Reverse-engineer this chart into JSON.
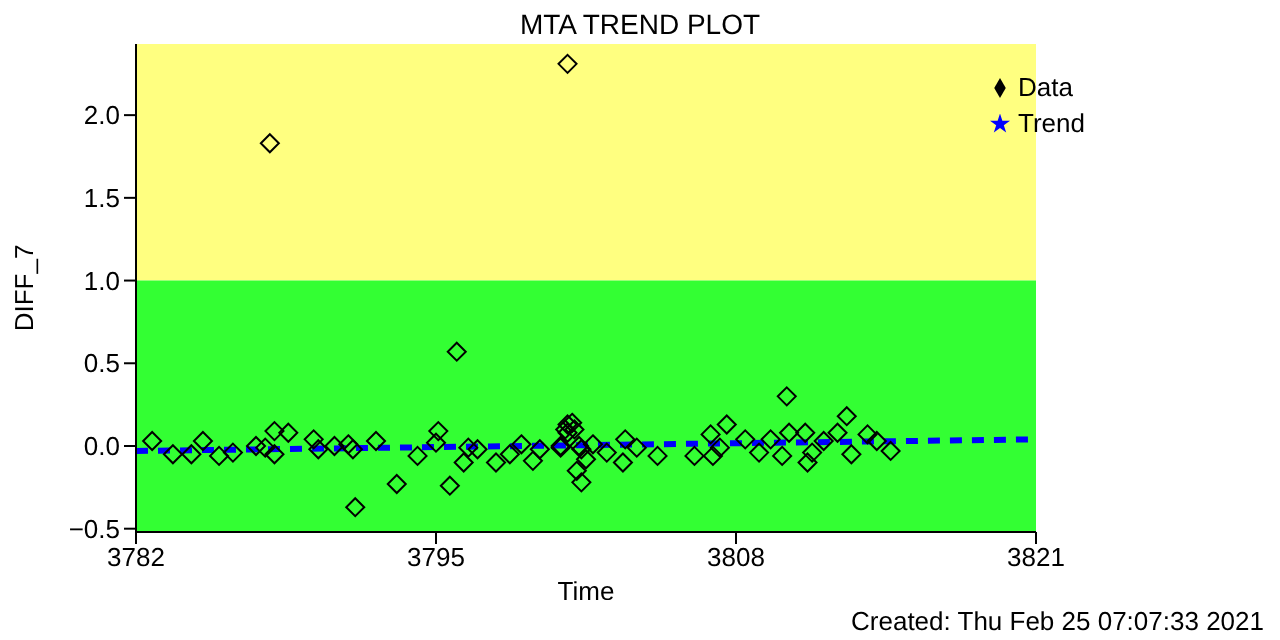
{
  "chart_data": {
    "type": "scatter",
    "title": "MTA TREND PLOT",
    "xlabel": "Time",
    "ylabel": "DIFF_7",
    "annotations": [
      "Created: Thu Feb 25 07:07:33 2021"
    ],
    "xlim": [
      3782,
      3821
    ],
    "xticks": [
      3782,
      3795,
      3808,
      3821
    ],
    "ylim": [
      -0.52,
      2.43
    ],
    "yticks": [
      {
        "value": -0.5,
        "label": "−0.5"
      },
      {
        "value": 0,
        "label": "0.0"
      },
      {
        "value": 0.5,
        "label": "0.5"
      },
      {
        "value": 1,
        "label": "1.0"
      },
      {
        "value": 1.5,
        "label": "1.5"
      },
      {
        "value": 2,
        "label": "2.0"
      }
    ],
    "bands": [
      {
        "axis": "y",
        "from": 1.0,
        "to": 2.43,
        "color": "#ffff80"
      },
      {
        "axis": "y",
        "from": -0.52,
        "to": 1.0,
        "color": "#33ff33"
      }
    ],
    "legend": "top right",
    "grid": false,
    "series": [
      {
        "name": "Data",
        "type": "scatter",
        "marker": "diamond",
        "color": "#000000",
        "x": [
          3782.7,
          3783.6,
          3784.4,
          3784.9,
          3785.6,
          3786.2,
          3787.2,
          3787.6,
          3788.0,
          3788.0,
          3788.6,
          3789.7,
          3789.9,
          3790.6,
          3791.2,
          3791.4,
          3791.5,
          3792.4,
          3793.3,
          3794.2,
          3795.0,
          3795.1,
          3795.6,
          3795.9,
          3796.2,
          3796.4,
          3796.8,
          3797.6,
          3798.2,
          3798.7,
          3799.2,
          3799.5,
          3800.4,
          3800.6,
          3800.7,
          3800.4,
          3800.7,
          3800.9,
          3801.0,
          3801.2,
          3801.3,
          3801.1,
          3801.3,
          3801.5,
          3801.8,
          3802.4,
          3803.1,
          3803.2,
          3803.7,
          3804.6,
          3806.2,
          3806.9,
          3807.0,
          3807.3,
          3807.6,
          3808.4,
          3809.0,
          3809.5,
          3810.0,
          3810.2,
          3810.3,
          3811.0,
          3811.1,
          3811.3,
          3811.8,
          3812.4,
          3812.8,
          3813.0,
          3813.7,
          3814.1,
          3814.7,
          3787.8,
          3800.7
        ],
        "values": [
          0.03,
          -0.05,
          -0.05,
          0.03,
          -0.06,
          -0.04,
          0.0,
          -0.01,
          0.09,
          -0.05,
          0.08,
          0.04,
          -0.02,
          0.0,
          0.01,
          -0.02,
          -0.37,
          0.03,
          -0.23,
          -0.06,
          0.02,
          0.09,
          -0.24,
          0.57,
          -0.1,
          -0.01,
          -0.02,
          -0.1,
          -0.05,
          0.01,
          -0.09,
          -0.02,
          0.0,
          0.1,
          0.13,
          -0.01,
          0.08,
          0.14,
          0.1,
          0.0,
          -0.02,
          -0.15,
          -0.22,
          -0.08,
          0.01,
          -0.04,
          -0.1,
          0.04,
          -0.01,
          -0.06,
          -0.06,
          0.07,
          -0.06,
          -0.01,
          0.13,
          0.04,
          -0.04,
          0.04,
          -0.06,
          0.3,
          0.08,
          0.08,
          -0.1,
          -0.04,
          0.03,
          0.08,
          0.18,
          -0.05,
          0.07,
          0.03,
          -0.03,
          1.83,
          2.31
        ]
      },
      {
        "name": "Trend",
        "type": "line",
        "marker": "none",
        "line_style": "dashed",
        "color": "#0000ff",
        "x": [
          3782,
          3821
        ],
        "values": [
          -0.03,
          0.04
        ]
      }
    ]
  }
}
